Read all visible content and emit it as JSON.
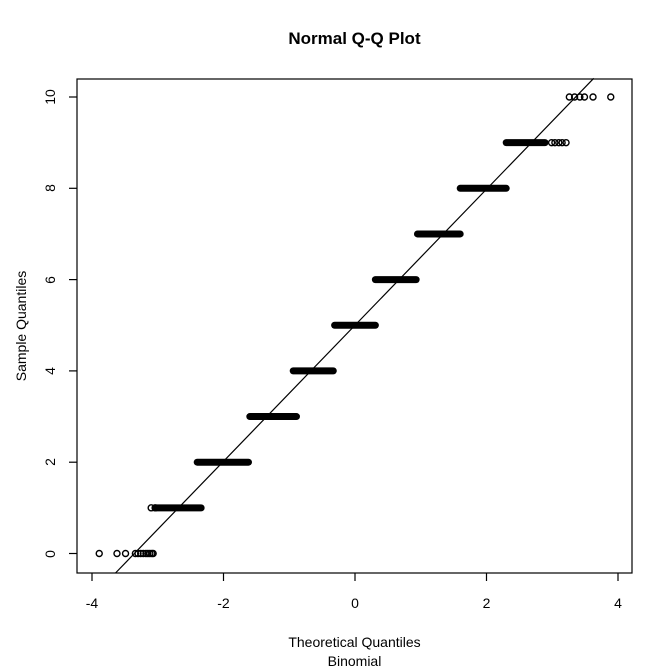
{
  "chart_data": {
    "type": "scatter",
    "variant": "normal-qq-plot",
    "title": "Normal Q-Q Plot",
    "xlabel": "Theoretical Quantiles",
    "xlabel_sub": "Binomial",
    "ylabel": "Sample Quantiles",
    "x_ticks": [
      -4,
      -2,
      0,
      2,
      4
    ],
    "y_ticks": [
      0,
      2,
      4,
      6,
      8,
      10
    ],
    "xlim": [
      -4.23,
      4.22
    ],
    "ylim": [
      -0.43,
      10.41
    ],
    "grid": false,
    "legend": null,
    "marker": "open-circle",
    "colors": {
      "foreground": "#000000",
      "background": "#ffffff"
    },
    "reference_line": {
      "slope": 1.49,
      "intercept": 5.0
    },
    "series": [
      {
        "y": 0,
        "dense_x_range": null,
        "sparse_x": [
          -3.89,
          -3.62,
          -3.49,
          -3.34,
          -3.3,
          -3.26,
          -3.22,
          -3.18,
          -3.15,
          -3.12,
          -3.09,
          -3.07
        ]
      },
      {
        "y": 1,
        "dense_x_range": [
          -3.03,
          -2.34
        ],
        "sparse_x": [
          -3.1,
          -3.04
        ]
      },
      {
        "y": 2,
        "dense_x_range": [
          -2.4,
          -1.62
        ],
        "sparse_x": []
      },
      {
        "y": 3,
        "dense_x_range": [
          -1.6,
          -0.89
        ],
        "sparse_x": []
      },
      {
        "y": 4,
        "dense_x_range": [
          -0.94,
          -0.33
        ],
        "sparse_x": []
      },
      {
        "y": 5,
        "dense_x_range": [
          -0.31,
          0.31
        ],
        "sparse_x": []
      },
      {
        "y": 6,
        "dense_x_range": [
          0.31,
          0.93
        ],
        "sparse_x": []
      },
      {
        "y": 7,
        "dense_x_range": [
          0.95,
          1.6
        ],
        "sparse_x": []
      },
      {
        "y": 8,
        "dense_x_range": [
          1.6,
          2.3
        ],
        "sparse_x": []
      },
      {
        "y": 9,
        "dense_x_range": [
          2.3,
          2.89
        ],
        "sparse_x": [
          2.99,
          3.04,
          3.1,
          3.15,
          3.21
        ]
      },
      {
        "y": 10,
        "dense_x_range": null,
        "sparse_x": [
          3.26,
          3.34,
          3.42,
          3.49,
          3.62,
          3.89
        ]
      }
    ]
  }
}
